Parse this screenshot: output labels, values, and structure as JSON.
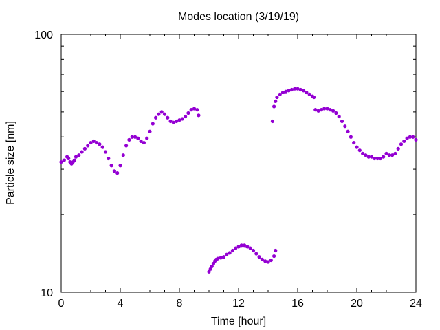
{
  "chart_data": {
    "type": "scatter",
    "title": "Modes location (3/19/19)",
    "xlabel": "Time [hour]",
    "ylabel": "Particle size [nm]",
    "xlim": [
      0,
      24
    ],
    "ylim": [
      10,
      100
    ],
    "y_scale": "log",
    "x_ticks": [
      0,
      4,
      8,
      12,
      16,
      20,
      24
    ],
    "y_tick_labels": [
      10,
      100
    ],
    "grid": false,
    "marker_color": "#9400d3",
    "segments": [
      {
        "x": [
          0.0,
          0.2,
          0.4,
          0.5,
          0.6,
          0.7,
          0.8,
          0.9,
          1.0,
          1.2,
          1.4,
          1.6,
          1.8,
          2.0,
          2.2,
          2.4,
          2.6,
          2.8,
          3.0,
          3.2,
          3.4,
          3.6,
          3.8,
          4.0,
          4.2,
          4.4,
          4.6,
          4.8,
          5.0,
          5.2,
          5.4,
          5.6,
          5.8,
          6.0,
          6.2,
          6.4,
          6.6,
          6.8,
          7.0,
          7.2,
          7.4,
          7.6,
          7.8,
          8.0,
          8.2,
          8.4,
          8.6,
          8.8,
          9.0,
          9.2,
          9.3
        ],
        "y": [
          32.0,
          32.5,
          33.5,
          33.0,
          32.0,
          31.5,
          32.0,
          32.5,
          33.5,
          34.0,
          35.0,
          36.0,
          37.0,
          38.0,
          38.5,
          38.0,
          37.5,
          36.5,
          35.0,
          33.0,
          31.0,
          29.5,
          29.0,
          31.0,
          34.0,
          37.0,
          39.0,
          40.0,
          40.0,
          39.5,
          38.5,
          38.0,
          39.5,
          42.0,
          45.0,
          47.5,
          49.0,
          50.0,
          49.0,
          47.5,
          46.0,
          45.5,
          46.0,
          46.5,
          47.0,
          48.0,
          49.5,
          51.0,
          51.5,
          51.0,
          48.5
        ]
      },
      {
        "x": [
          10.0,
          10.1,
          10.2,
          10.3,
          10.4,
          10.5,
          10.6,
          10.8,
          11.0,
          11.2,
          11.4,
          11.6,
          11.8,
          12.0,
          12.2,
          12.4,
          12.6,
          12.8,
          13.0,
          13.2,
          13.4,
          13.6,
          13.8,
          14.0,
          14.2,
          14.4,
          14.5
        ],
        "y": [
          12.0,
          12.3,
          12.6,
          12.9,
          13.2,
          13.4,
          13.5,
          13.6,
          13.7,
          14.0,
          14.2,
          14.5,
          14.8,
          15.0,
          15.2,
          15.2,
          15.0,
          14.8,
          14.5,
          14.1,
          13.7,
          13.4,
          13.2,
          13.1,
          13.3,
          13.8,
          14.5
        ]
      },
      {
        "x": [
          14.3,
          14.4,
          14.5,
          14.6,
          14.8,
          15.0,
          15.2,
          15.4,
          15.6,
          15.8,
          16.0,
          16.2,
          16.4,
          16.6,
          16.8,
          17.0,
          17.1
        ],
        "y": [
          46.0,
          52.5,
          55.0,
          57.0,
          58.5,
          59.5,
          60.0,
          60.5,
          61.0,
          61.5,
          61.5,
          61.0,
          60.5,
          59.5,
          58.5,
          57.5,
          57.0
        ]
      },
      {
        "x": [
          17.2,
          17.4,
          17.6,
          17.8,
          18.0,
          18.2,
          18.4,
          18.6,
          18.8,
          19.0,
          19.2,
          19.4,
          19.6,
          19.8,
          20.0,
          20.2,
          20.4,
          20.6,
          20.8,
          21.0,
          21.2,
          21.4,
          21.6,
          21.8,
          22.0,
          22.2,
          22.4,
          22.6,
          22.8,
          23.0,
          23.2,
          23.4,
          23.6,
          23.8,
          24.0
        ],
        "y": [
          51.0,
          50.5,
          51.0,
          51.5,
          51.5,
          51.0,
          50.5,
          49.5,
          48.0,
          46.0,
          44.0,
          42.0,
          40.0,
          38.0,
          36.5,
          35.5,
          34.5,
          34.0,
          33.5,
          33.5,
          33.0,
          33.0,
          33.0,
          33.5,
          34.5,
          34.0,
          34.0,
          34.5,
          36.0,
          37.5,
          38.5,
          39.5,
          40.0,
          40.0,
          39.0
        ]
      }
    ]
  }
}
